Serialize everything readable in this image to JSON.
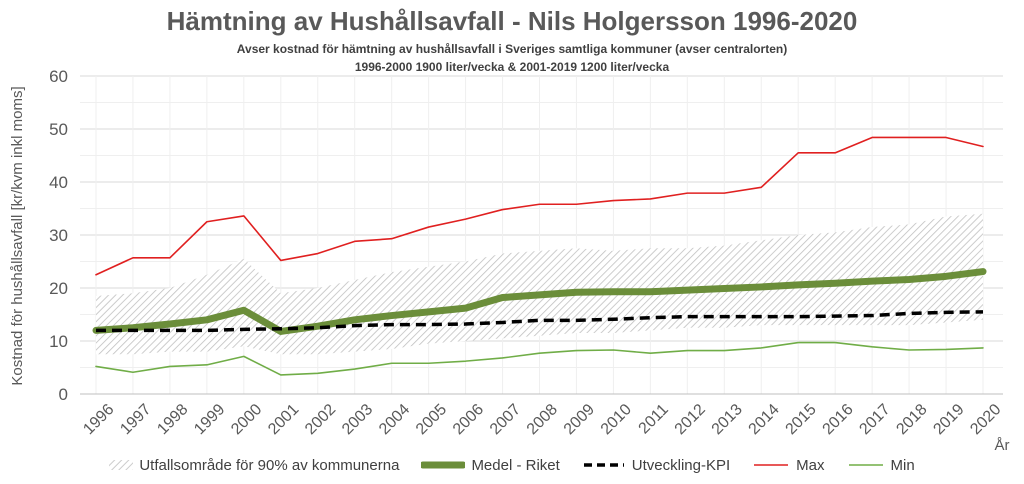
{
  "chart_data": {
    "type": "line",
    "title": "Hämtning av Hushållsavfall - Nils Holgersson 1996-2020",
    "subtitle_1": "Avser kostnad för hämtning av hushållsavfall i Sveriges samtliga kommuner (avser centralorten)",
    "subtitle_2": "1996-2000 1900 liter/vecka & 2001-2019 1200 liter/vecka",
    "ylabel": "Kostnad för hushållsavfall [kr/kvm inkl moms]",
    "xlabel": "År",
    "ylim": [
      0,
      60
    ],
    "yticks": [
      "0",
      "10",
      "20",
      "30",
      "40",
      "50",
      "60"
    ],
    "categories": [
      "1996",
      "1997",
      "1998",
      "1999",
      "2000",
      "2001",
      "2002",
      "2003",
      "2004",
      "2005",
      "2006",
      "2007",
      "2008",
      "2009",
      "2010",
      "2011",
      "2012",
      "2013",
      "2014",
      "2015",
      "2016",
      "2017",
      "2018",
      "2019",
      "2020"
    ],
    "grid": true,
    "legend_position": "bottom",
    "band": {
      "name": "Utfallsområde för 90% av kommunerna",
      "upper": [
        18.5,
        19,
        20,
        22.5,
        25.5,
        19,
        20,
        21.5,
        23,
        24,
        25,
        26.5,
        27,
        27.5,
        27,
        27.5,
        27.5,
        28,
        29,
        30,
        30.5,
        31.5,
        32,
        33.5,
        34
      ],
      "lower": [
        7.5,
        7.5,
        8,
        8,
        9,
        7.5,
        7.5,
        8,
        8.5,
        9.5,
        10,
        10.5,
        11,
        11.5,
        11.5,
        12,
        12.5,
        12.5,
        13,
        13,
        13,
        13,
        13,
        13.5,
        14
      ]
    },
    "series": [
      {
        "name": "Medel - Riket",
        "color": "#6b8e3a",
        "width": 7,
        "dash": "",
        "values": [
          12,
          12.5,
          13.2,
          14,
          15.8,
          11.8,
          12.8,
          14,
          14.8,
          15.5,
          16.2,
          18.2,
          18.7,
          19.2,
          19.3,
          19.3,
          19.6,
          19.9,
          20.2,
          20.6,
          20.9,
          21.3,
          21.6,
          22.2,
          23.1
        ]
      },
      {
        "name": "Utveckling-KPI",
        "color": "#000000",
        "width": 3.5,
        "dash": "10,6",
        "values": [
          12,
          12,
          12,
          12,
          12.2,
          12.3,
          12.5,
          12.9,
          13.1,
          13.1,
          13.2,
          13.5,
          13.9,
          13.9,
          14.1,
          14.4,
          14.6,
          14.6,
          14.6,
          14.6,
          14.7,
          14.8,
          15.2,
          15.4,
          15.5
        ]
      },
      {
        "name": "Max",
        "color": "#e02020",
        "width": 1.6,
        "dash": "",
        "values": [
          22.5,
          25.7,
          25.7,
          32.5,
          33.6,
          25.2,
          26.5,
          28.8,
          29.3,
          31.5,
          33,
          34.8,
          35.8,
          35.8,
          36.5,
          36.8,
          37.9,
          37.9,
          39,
          45.5,
          45.5,
          48.4,
          48.4,
          48.4,
          46.7
        ]
      },
      {
        "name": "Min",
        "color": "#70ad47",
        "width": 1.6,
        "dash": "",
        "values": [
          5.2,
          4.1,
          5.2,
          5.5,
          7.1,
          3.6,
          3.9,
          4.7,
          5.8,
          5.8,
          6.2,
          6.8,
          7.7,
          8.2,
          8.3,
          7.7,
          8.2,
          8.2,
          8.7,
          9.7,
          9.7,
          8.9,
          8.3,
          8.4,
          8.7
        ]
      }
    ]
  }
}
